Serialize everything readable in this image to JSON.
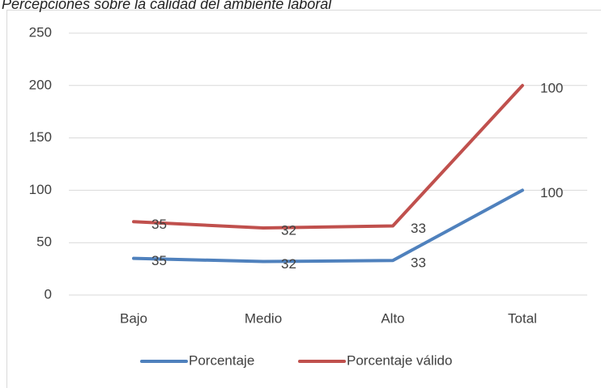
{
  "chart_data": {
    "type": "line",
    "stacked": true,
    "title": "Percepciones sobre la calidad del ambiente laboral",
    "categories": [
      "Bajo",
      "Medio",
      "Alto",
      "Total"
    ],
    "series": [
      {
        "name": "Porcentaje",
        "color": "#4f81bd",
        "values": [
          35,
          32,
          33,
          100
        ]
      },
      {
        "name": "Porcentaje válido",
        "color": "#c0504d",
        "values": [
          35,
          32,
          33,
          100
        ]
      }
    ],
    "ylim": [
      0,
      250
    ],
    "yticks": [
      0,
      50,
      100,
      150,
      200,
      250
    ],
    "grid": true,
    "legend": "bottom"
  }
}
